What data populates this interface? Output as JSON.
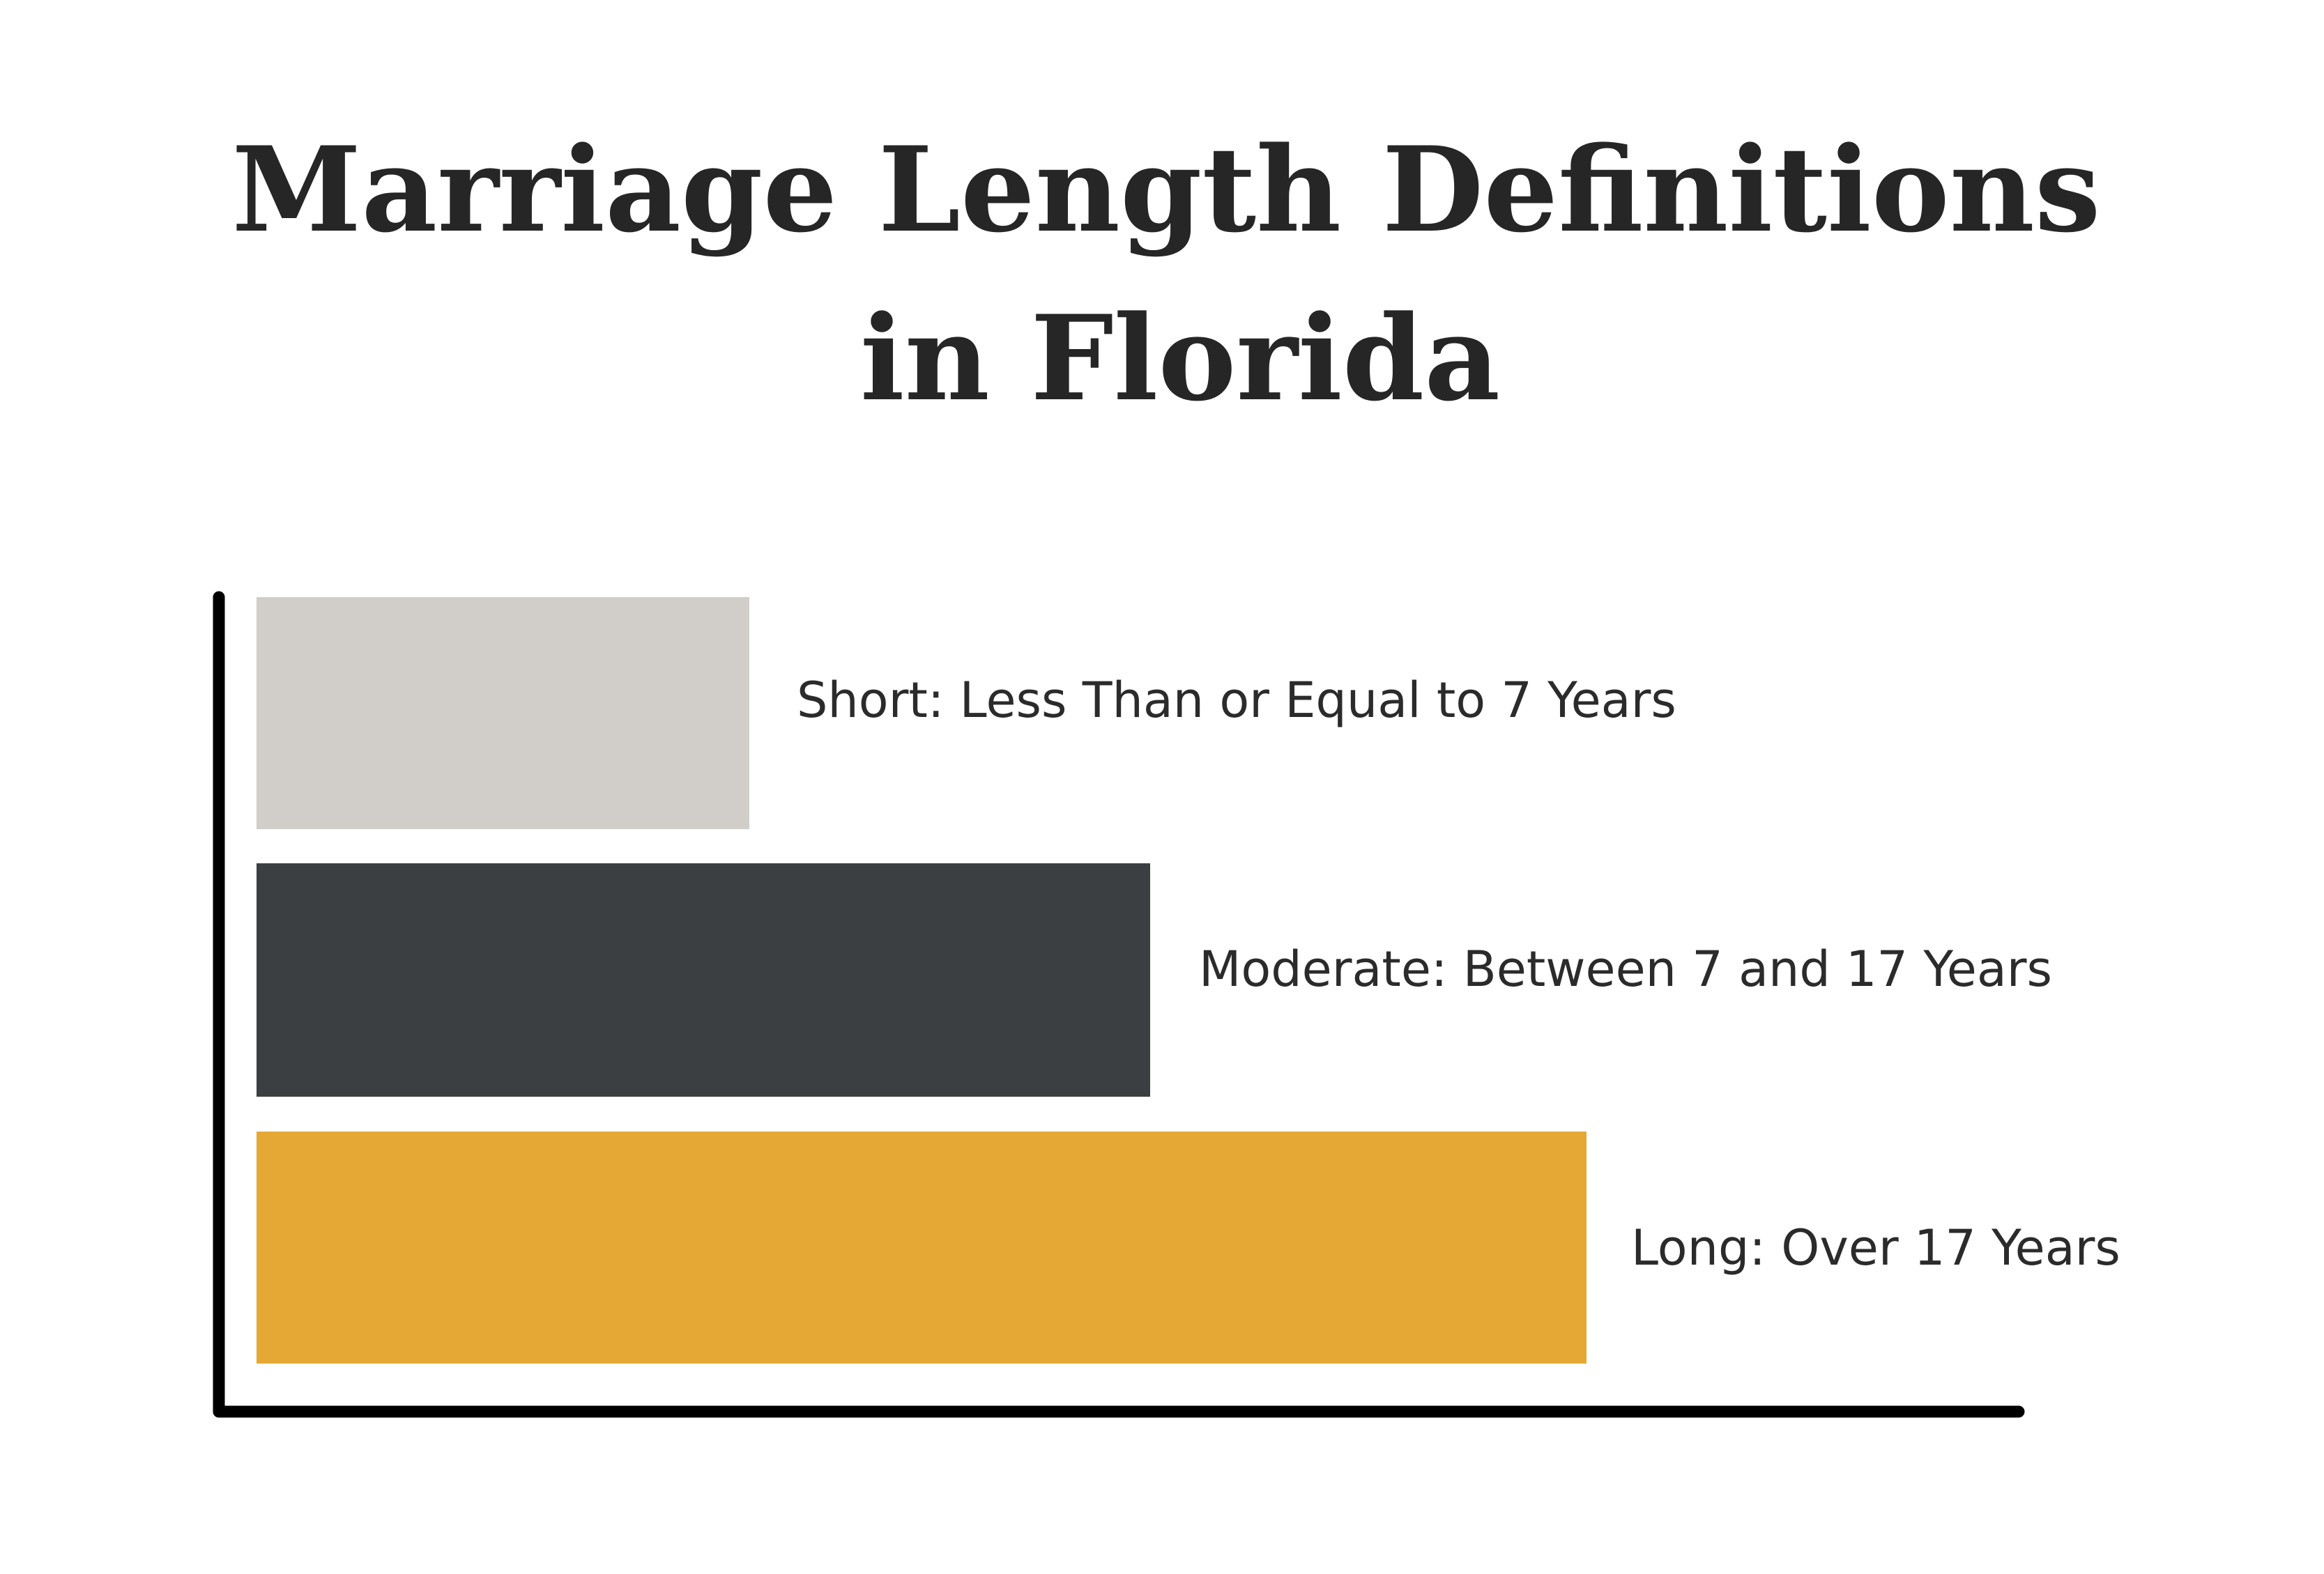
{
  "title": [
    "Marriage Length Definitions",
    "in Florida"
  ],
  "items": [
    {
      "label": "Short: Less Than or Equal to 7 Years"
    },
    {
      "label": "Moderate: Between 7 and 17 Years"
    },
    {
      "label": "Long: Over 17 Years"
    }
  ]
}
